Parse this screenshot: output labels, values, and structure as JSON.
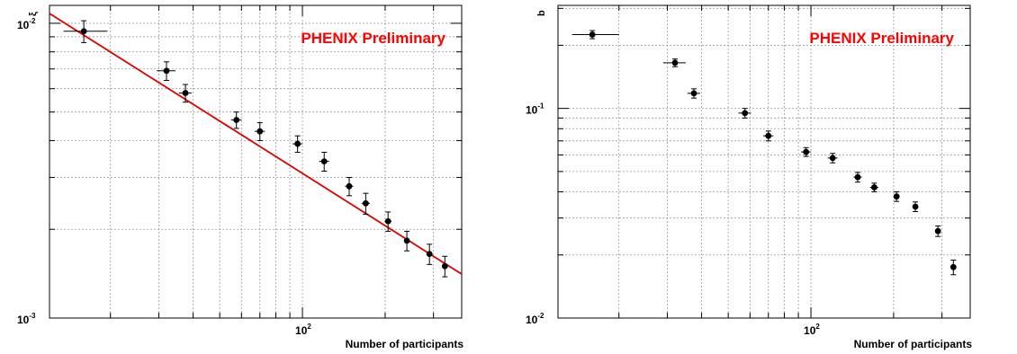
{
  "chart_data": [
    {
      "type": "scatter",
      "title": "",
      "annotation": "PHENIX Preliminary",
      "annotation_color": "#ff0000",
      "xlabel": "Number of participants",
      "ylabel": "ξ",
      "x_scale": "log",
      "y_scale": "log",
      "xlim": [
        12,
        380
      ],
      "ylim": [
        0.001,
        0.0115
      ],
      "x_ticks": [
        {
          "value": 100,
          "base": "10",
          "exp": "2"
        }
      ],
      "y_ticks": [
        {
          "value": 0.01,
          "base": "10",
          "exp": "-2"
        },
        {
          "value": 0.001,
          "base": "10",
          "exp": "-3"
        }
      ],
      "grid": true,
      "series": [
        {
          "marker": "circle",
          "color": "#000000",
          "points": [
            {
              "x": 16,
              "y": 0.0094,
              "xerr_lo": 2.5,
              "xerr_hi": 3.5,
              "yerr": 0.0008
            },
            {
              "x": 32,
              "y": 0.0069,
              "xerr_lo": 2.5,
              "xerr_hi": 2.5,
              "yerr": 0.0005
            },
            {
              "x": 37.5,
              "y": 0.0058,
              "xerr_lo": 2,
              "xerr_hi": 2,
              "yerr": 0.0004
            },
            {
              "x": 57.5,
              "y": 0.0047,
              "xerr_lo": 2.5,
              "xerr_hi": 2.5,
              "yerr": 0.0003
            },
            {
              "x": 70,
              "y": 0.0043,
              "xerr_lo": 3,
              "xerr_hi": 3,
              "yerr": 0.0003
            },
            {
              "x": 96,
              "y": 0.0039,
              "xerr_lo": 4,
              "xerr_hi": 4,
              "yerr": 0.00025
            },
            {
              "x": 120,
              "y": 0.0034,
              "xerr_lo": 5,
              "xerr_hi": 5,
              "yerr": 0.00025
            },
            {
              "x": 148,
              "y": 0.0028,
              "xerr_lo": 5,
              "xerr_hi": 5,
              "yerr": 0.0002
            },
            {
              "x": 170,
              "y": 0.00245,
              "xerr_lo": 6,
              "xerr_hi": 6,
              "yerr": 0.0002
            },
            {
              "x": 205,
              "y": 0.00213,
              "xerr_lo": 6,
              "xerr_hi": 6,
              "yerr": 0.00016
            },
            {
              "x": 240,
              "y": 0.00183,
              "xerr_lo": 5,
              "xerr_hi": 5,
              "yerr": 0.00014
            },
            {
              "x": 290,
              "y": 0.00165,
              "xerr_lo": 5,
              "xerr_hi": 5,
              "yerr": 0.00013
            },
            {
              "x": 330,
              "y": 0.0015,
              "xerr_lo": 5,
              "xerr_hi": 5,
              "yerr": 0.00012
            }
          ]
        }
      ],
      "fit_line": {
        "color": "#dd0000",
        "x": [
          12,
          380
        ],
        "y": [
          0.0108,
          0.00141
        ]
      }
    },
    {
      "type": "scatter",
      "title": "",
      "annotation": "PHENIX Preliminary",
      "annotation_color": "#ff0000",
      "xlabel": "Number of participants",
      "ylabel": "b",
      "x_scale": "log",
      "y_scale": "log",
      "xlim": [
        12,
        380
      ],
      "ylim": [
        0.01,
        0.31
      ],
      "x_ticks": [
        {
          "value": 100,
          "base": "10",
          "exp": "2"
        }
      ],
      "y_ticks": [
        {
          "value": 0.1,
          "base": "10",
          "exp": "-1"
        },
        {
          "value": 0.01,
          "base": "10",
          "exp": "-2"
        }
      ],
      "grid": true,
      "series": [
        {
          "marker": "circle",
          "color": "#000000",
          "points": [
            {
              "x": 16,
              "y": 0.225,
              "xerr_lo": 2.5,
              "xerr_hi": 4,
              "yerr": 0.01
            },
            {
              "x": 32,
              "y": 0.165,
              "xerr_lo": 3,
              "xerr_hi": 3,
              "yerr": 0.007
            },
            {
              "x": 37.5,
              "y": 0.118,
              "xerr_lo": 2,
              "xerr_hi": 2,
              "yerr": 0.006
            },
            {
              "x": 57.5,
              "y": 0.095,
              "xerr_lo": 3,
              "xerr_hi": 3,
              "yerr": 0.005
            },
            {
              "x": 70,
              "y": 0.074,
              "xerr_lo": 3,
              "xerr_hi": 3,
              "yerr": 0.004
            },
            {
              "x": 96,
              "y": 0.062,
              "xerr_lo": 4,
              "xerr_hi": 4,
              "yerr": 0.003
            },
            {
              "x": 120,
              "y": 0.058,
              "xerr_lo": 5,
              "xerr_hi": 5,
              "yerr": 0.003
            },
            {
              "x": 148,
              "y": 0.047,
              "xerr_lo": 5,
              "xerr_hi": 5,
              "yerr": 0.0025
            },
            {
              "x": 170,
              "y": 0.042,
              "xerr_lo": 6,
              "xerr_hi": 6,
              "yerr": 0.002
            },
            {
              "x": 205,
              "y": 0.038,
              "xerr_lo": 5,
              "xerr_hi": 5,
              "yerr": 0.002
            },
            {
              "x": 240,
              "y": 0.034,
              "xerr_lo": 5,
              "xerr_hi": 5,
              "yerr": 0.0018
            },
            {
              "x": 290,
              "y": 0.026,
              "xerr_lo": 5,
              "xerr_hi": 5,
              "yerr": 0.0015
            },
            {
              "x": 330,
              "y": 0.0175,
              "xerr_lo": 5,
              "xerr_hi": 5,
              "yerr": 0.0014
            }
          ]
        }
      ]
    }
  ]
}
